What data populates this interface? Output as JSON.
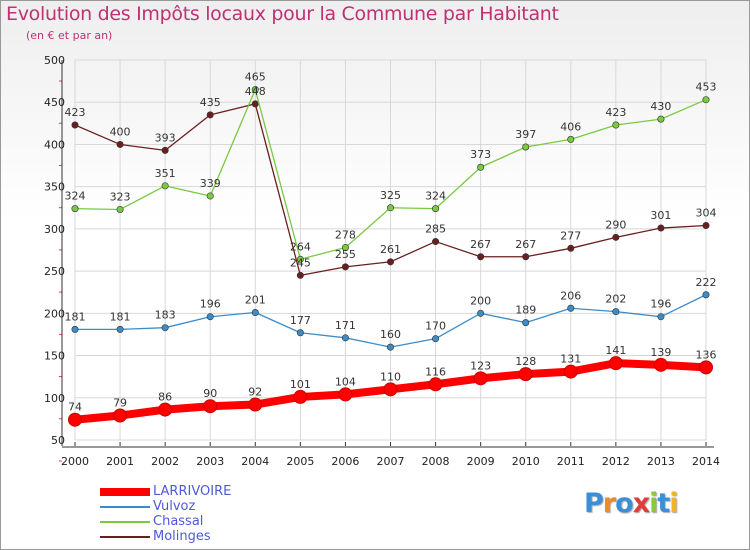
{
  "title": "Evolution des Impôts locaux pour la Commune par Habitant",
  "subtitle": "(en € et par an)",
  "logo": {
    "text": "Proxiti",
    "colors": [
      "#3b8fd6",
      "#f08a24",
      "#3b8fd6",
      "#e23a3a",
      "#8dc63f",
      "#3b8fd6",
      "#f0b323"
    ]
  },
  "chart_data": {
    "type": "line",
    "x": [
      "2000",
      "2001",
      "2002",
      "2003",
      "2004",
      "2005",
      "2006",
      "2007",
      "2008",
      "2009",
      "2010",
      "2011",
      "2012",
      "2013",
      "2014"
    ],
    "ylim": [
      50,
      500
    ],
    "yticks": [
      50,
      100,
      150,
      200,
      250,
      300,
      350,
      400,
      450,
      500
    ],
    "grid": true,
    "legend": "bottom-left",
    "series": [
      {
        "name": "LARRIVOIRE",
        "color": "#ff0000",
        "values": [
          74,
          79,
          86,
          90,
          92,
          101,
          104,
          110,
          116,
          123,
          128,
          131,
          141,
          139,
          136
        ]
      },
      {
        "name": "Vulvoz",
        "color": "#3d8cc8",
        "values": [
          181,
          181,
          183,
          196,
          201,
          177,
          171,
          160,
          170,
          200,
          189,
          206,
          202,
          196,
          222
        ]
      },
      {
        "name": "Chassal",
        "color": "#7ac943",
        "values": [
          324,
          323,
          351,
          339,
          465,
          264,
          278,
          325,
          324,
          373,
          397,
          406,
          423,
          430,
          453
        ]
      },
      {
        "name": "Molinges",
        "color": "#6a1f1f",
        "values": [
          423,
          400,
          393,
          435,
          448,
          245,
          255,
          261,
          285,
          267,
          267,
          277,
          290,
          301,
          304
        ]
      }
    ]
  }
}
